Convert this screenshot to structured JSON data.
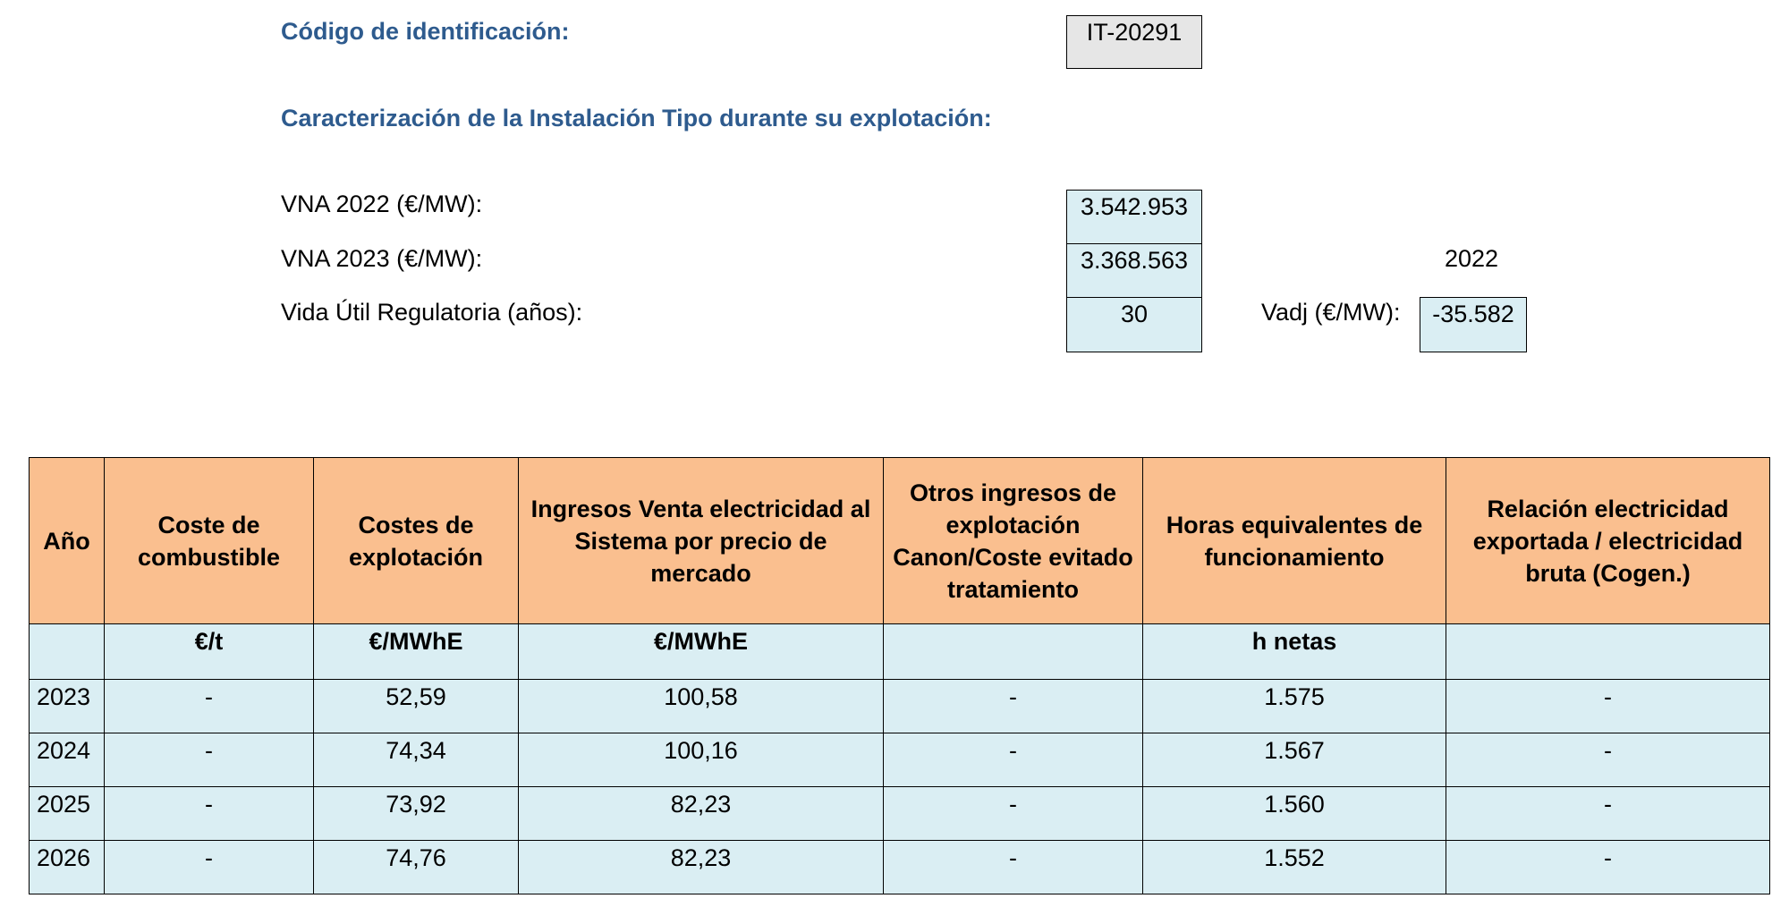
{
  "header": {
    "id_label": "Código de identificación:",
    "id_value": "IT-20291",
    "section_title": "Caracterización de la Instalación Tipo durante su explotación:"
  },
  "params": {
    "vna2022_label": "VNA 2022 (€/MW):",
    "vna2022_value": "3.542.953",
    "vna2023_label": "VNA 2023 (€/MW):",
    "vna2023_value": "3.368.563",
    "year_label": "2022",
    "vida_label": "Vida Útil Regulatoria (años):",
    "vida_value": "30",
    "vadj_label": "Vadj (€/MW):",
    "vadj_value": "-35.582"
  },
  "table": {
    "columns": [
      "Año",
      "Coste de combustible",
      "Costes de explotación",
      "Ingresos Venta electricidad al Sistema por precio de mercado",
      "Otros ingresos de explotación Canon/Coste evitado tratamiento",
      "Horas equivalentes de funcionamiento",
      "Relación electricidad exportada / electricidad bruta (Cogen.)"
    ],
    "units": [
      "",
      "€/t",
      "€/MWhE",
      "€/MWhE",
      "",
      "h netas",
      ""
    ],
    "rows": [
      [
        "2023",
        "-",
        "52,59",
        "100,58",
        "-",
        "1.575",
        "-"
      ],
      [
        "2024",
        "-",
        "74,34",
        "100,16",
        "-",
        "1.567",
        "-"
      ],
      [
        "2025",
        "-",
        "73,92",
        "82,23",
        "-",
        "1.560",
        "-"
      ],
      [
        "2026",
        "-",
        "74,76",
        "82,23",
        "-",
        "1.552",
        "-"
      ]
    ]
  },
  "colors": {
    "heading": "#2E5B8E",
    "header_fill": "#FABF8F",
    "cell_fill": "#DAEEF3",
    "id_fill": "#E6E6E6"
  }
}
